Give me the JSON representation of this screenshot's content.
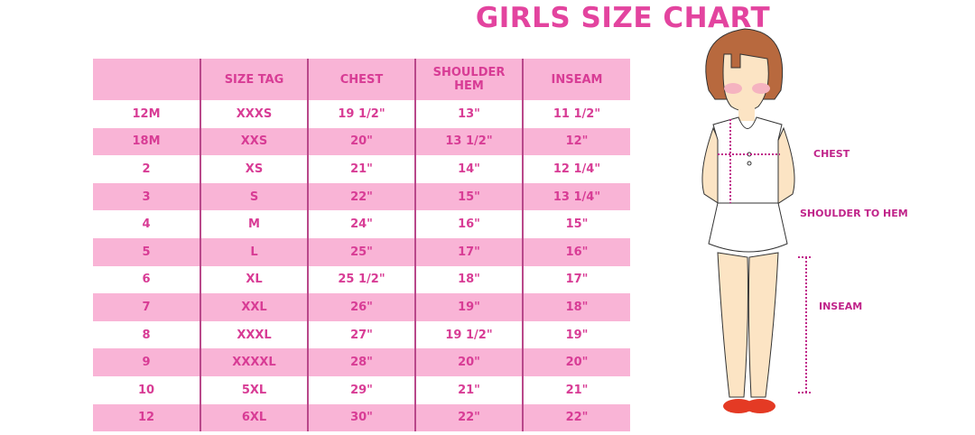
{
  "title": "GIRLS SIZE CHART",
  "table": {
    "headers": [
      "",
      "SIZE TAG",
      "CHEST",
      "SHOULDER HEM",
      "INSEAM"
    ],
    "rows": [
      [
        "12M",
        "XXXS",
        "19 1/2\"",
        "13\"",
        "11 1/2\""
      ],
      [
        "18M",
        "XXS",
        "20\"",
        "13 1/2\"",
        "12\""
      ],
      [
        "2",
        "XS",
        "21\"",
        "14\"",
        "12 1/4\""
      ],
      [
        "3",
        "S",
        "22\"",
        "15\"",
        "13 1/4\""
      ],
      [
        "4",
        "M",
        "24\"",
        "16\"",
        "15\""
      ],
      [
        "5",
        "L",
        "25\"",
        "17\"",
        "16\""
      ],
      [
        "6",
        "XL",
        "25 1/2\"",
        "18\"",
        "17\""
      ],
      [
        "7",
        "XXL",
        "26\"",
        "19\"",
        "18\""
      ],
      [
        "8",
        "XXXL",
        "27\"",
        "19 1/2\"",
        "19\""
      ],
      [
        "9",
        "XXXXL",
        "28\"",
        "20\"",
        "20\""
      ],
      [
        "10",
        "5XL",
        "29\"",
        "21\"",
        "21\""
      ],
      [
        "12",
        "6XL",
        "30\"",
        "22\"",
        "22\""
      ]
    ]
  },
  "illustration": {
    "labels": {
      "chest": "CHEST",
      "shoulder_to_hem": "SHOULDER TO HEM",
      "inseam": "INSEAM"
    }
  },
  "colors": {
    "accent": "#e3449f",
    "row_pink": "#f9b4d6",
    "text": "#d83c95"
  }
}
